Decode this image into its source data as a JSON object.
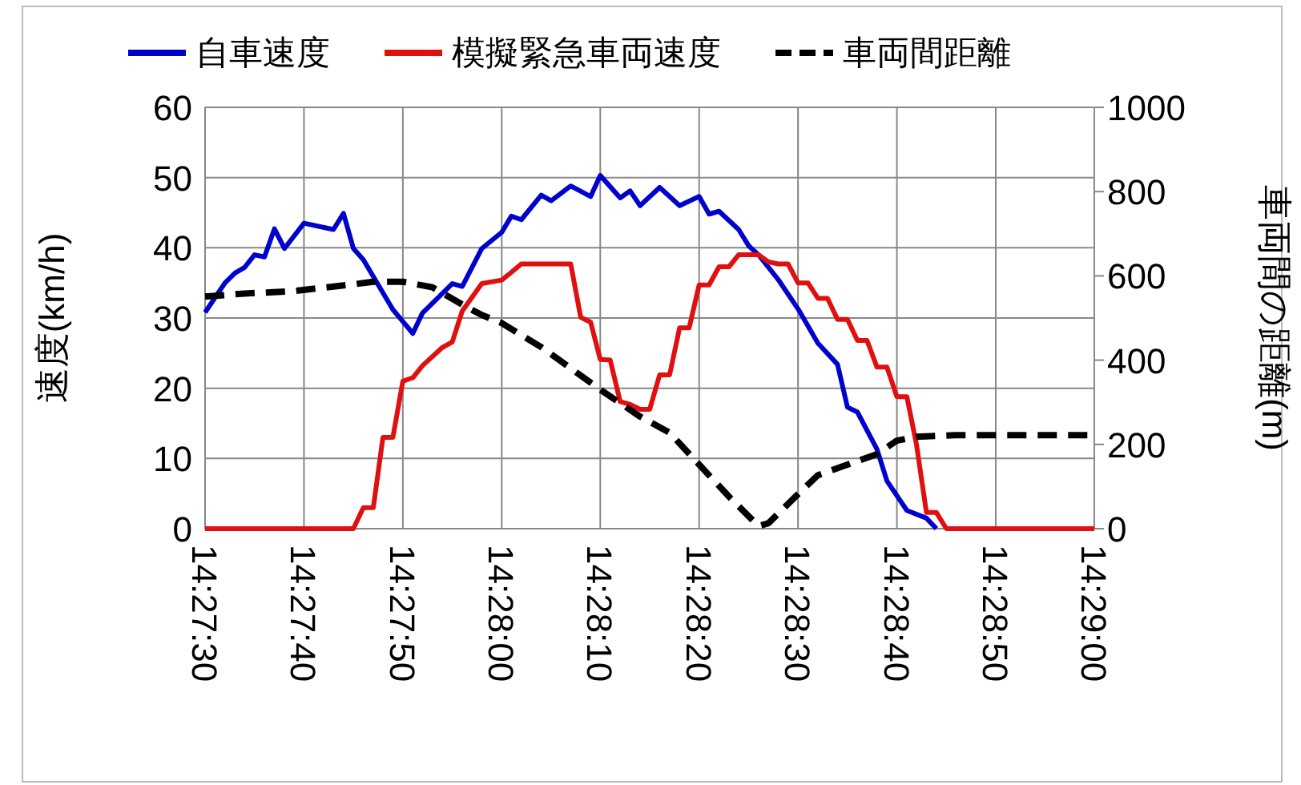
{
  "chart_data": {
    "type": "line",
    "ylabel": "速度(km/h)",
    "y2label": "車両間の距離(m)",
    "xlim": [
      14.45833,
      14.48333
    ],
    "xticks": [
      {
        "value": 14.45833,
        "label": "14:27:30"
      },
      {
        "value": 14.46111,
        "label": "14:27:40"
      },
      {
        "value": 14.46389,
        "label": "14:27:50"
      },
      {
        "value": 14.46667,
        "label": "14:28:00"
      },
      {
        "value": 14.46944,
        "label": "14:28:10"
      },
      {
        "value": 14.47222,
        "label": "14:28:20"
      },
      {
        "value": 14.475,
        "label": "14:28:30"
      },
      {
        "value": 14.47778,
        "label": "14:28:40"
      },
      {
        "value": 14.48056,
        "label": "14:28:50"
      },
      {
        "value": 14.48333,
        "label": "14:29:00"
      }
    ],
    "ylim": [
      0,
      60
    ],
    "yticks": [
      0,
      10,
      20,
      30,
      40,
      50,
      60
    ],
    "y2lim": [
      0,
      1000
    ],
    "y2ticks": [
      0,
      200,
      400,
      600,
      800,
      1000
    ],
    "grid": true,
    "legend": "top",
    "marker": "none",
    "series": [
      {
        "name": "自車速度",
        "color": "#0000cc",
        "line_style": "solid",
        "x": [
          14.45833,
          14.45889,
          14.45917,
          14.45944,
          14.45972,
          14.46,
          14.46028,
          14.46056,
          14.46111,
          14.46194,
          14.46222,
          14.4625,
          14.46278,
          14.46361,
          14.46417,
          14.46444,
          14.46528,
          14.46556,
          14.46611,
          14.46667,
          14.46694,
          14.46722,
          14.46778,
          14.46806,
          14.46861,
          14.46917,
          14.46944,
          14.47,
          14.47028,
          14.47056,
          14.47111,
          14.47167,
          14.47222,
          14.4725,
          14.47278,
          14.47333,
          14.47361,
          14.47389,
          14.47444,
          14.475,
          14.47556,
          14.47611,
          14.47639,
          14.47667,
          14.47722,
          14.4775,
          14.47806,
          14.47861,
          14.47889
        ],
        "values": [
          30.8,
          35,
          36.4,
          37.2,
          39,
          38.7,
          42.7,
          39.9,
          43.5,
          42.6,
          44.9,
          39.9,
          38.3,
          31.2,
          27.8,
          30.7,
          34.9,
          34.5,
          39.9,
          42.2,
          44.5,
          44,
          47.5,
          46.7,
          48.8,
          47.3,
          50.3,
          47.1,
          48.1,
          46,
          48.6,
          46,
          47.3,
          44.8,
          45.2,
          42.6,
          40.3,
          39,
          35.5,
          31.3,
          26.4,
          23.4,
          17.3,
          16.6,
          11.3,
          6.8,
          2.6,
          1.5,
          0
        ]
      },
      {
        "name": "模擬緊急車両速度",
        "color": "#e01010",
        "line_style": "solid",
        "x": [
          14.45833,
          14.4625,
          14.46278,
          14.46306,
          14.46333,
          14.46361,
          14.46389,
          14.46417,
          14.46444,
          14.465,
          14.46528,
          14.46556,
          14.46611,
          14.46667,
          14.46694,
          14.46722,
          14.46861,
          14.46889,
          14.46917,
          14.46944,
          14.46972,
          14.47,
          14.47028,
          14.47056,
          14.47083,
          14.47111,
          14.47139,
          14.47167,
          14.47194,
          14.47222,
          14.4725,
          14.47278,
          14.47306,
          14.47333,
          14.47389,
          14.47417,
          14.47444,
          14.47472,
          14.475,
          14.47528,
          14.47556,
          14.47583,
          14.47611,
          14.47639,
          14.47667,
          14.47694,
          14.47722,
          14.4775,
          14.47778,
          14.47806,
          14.47833,
          14.47861,
          14.47889,
          14.47917,
          14.48333
        ],
        "values": [
          0,
          0,
          3,
          3,
          13,
          13,
          21,
          21.5,
          23.2,
          25.8,
          26.6,
          31,
          34.9,
          35.4,
          36.5,
          37.7,
          37.7,
          30.1,
          29.4,
          24.1,
          24,
          18.1,
          17.7,
          17,
          17,
          21.9,
          21.9,
          28.6,
          28.6,
          34.7,
          34.7,
          37.3,
          37.3,
          39,
          39,
          38,
          37.7,
          37.7,
          35,
          35,
          32.8,
          32.8,
          29.8,
          29.8,
          26.8,
          26.8,
          23,
          23,
          18.8,
          18.8,
          12,
          2.3,
          2.3,
          0,
          0
        ]
      },
      {
        "name": "車両間距離",
        "color": "#000000",
        "line_style": "dashed",
        "axis": "y2",
        "x": [
          14.45833,
          14.45944,
          14.46083,
          14.4625,
          14.46306,
          14.46389,
          14.46472,
          14.46556,
          14.46611,
          14.46667,
          14.46778,
          14.46944,
          14.47056,
          14.47139,
          14.47222,
          14.47306,
          14.47389,
          14.47417,
          14.475,
          14.47556,
          14.47639,
          14.47722,
          14.47778,
          14.47833,
          14.47944,
          14.48333
        ],
        "values": [
          551,
          558,
          564,
          580,
          586,
          586,
          573,
          532,
          507,
          488,
          431,
          330,
          266,
          228,
          152,
          76,
          6,
          13,
          82,
          127,
          152,
          177,
          209,
          218,
          222,
          222
        ]
      }
    ]
  }
}
